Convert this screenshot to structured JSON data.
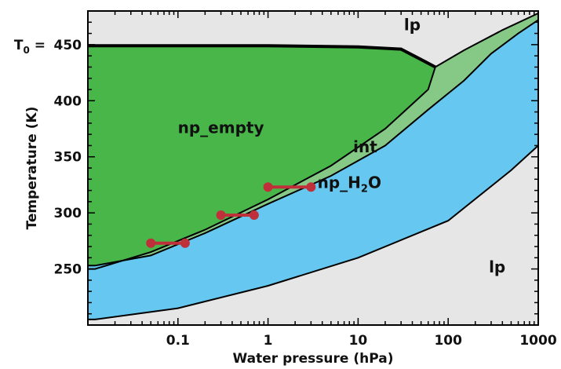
{
  "chart_data": {
    "type": "area",
    "xlabel": "Water pressure (hPa)",
    "ylabel": "Temperature (K)",
    "x_scale": "log",
    "xlim": [
      0.01,
      1000
    ],
    "ylim": [
      200,
      480
    ],
    "x_ticks": [
      {
        "value": 0.1,
        "label": "0.1"
      },
      {
        "value": 1,
        "label": "1"
      },
      {
        "value": 10,
        "label": "10"
      },
      {
        "value": 100,
        "label": "100"
      },
      {
        "value": 1000,
        "label": "1000"
      }
    ],
    "y_ticks": [
      {
        "value": 250,
        "label": "250"
      },
      {
        "value": 300,
        "label": "300"
      },
      {
        "value": 350,
        "label": "350"
      },
      {
        "value": 400,
        "label": "400"
      },
      {
        "value": 450,
        "label": "450"
      }
    ],
    "t0_label": {
      "prefix": "T",
      "sub": "0",
      "suffix": " = "
    },
    "colors": {
      "lp": "#e6e6e6",
      "np_empty": "#48b648",
      "int": "#86c986",
      "np_h2o": "#66c8f0",
      "markers": "#c0303a",
      "boundary": "#000000"
    },
    "regions": [
      {
        "name": "lp",
        "label": "lp",
        "x": 40,
        "y": 463
      },
      {
        "name": "np_empty",
        "label": "np_empty",
        "x": 0.3,
        "y": 371
      },
      {
        "name": "int",
        "label": "int",
        "x": 12,
        "y": 354
      },
      {
        "name": "np_h2o",
        "label_main": "np_H",
        "label_sub": "2",
        "label_tail": "O",
        "x": 8,
        "y": 322
      },
      {
        "name": "lp_lower",
        "label": "lp",
        "x": 350,
        "y": 247
      }
    ],
    "boundaries": {
      "top_plateau": [
        [
          0.012,
          449
        ],
        [
          1,
          449
        ],
        [
          10,
          448
        ],
        [
          30,
          446
        ],
        [
          55,
          435
        ],
        [
          72,
          430
        ]
      ],
      "np_empty_lower": [
        [
          0.012,
          250
        ],
        [
          0.05,
          265
        ],
        [
          0.2,
          285
        ],
        [
          1,
          312
        ],
        [
          5,
          342
        ],
        [
          20,
          375
        ],
        [
          60,
          410
        ],
        [
          72,
          430
        ]
      ],
      "int_lower": [
        [
          0.012,
          253
        ],
        [
          0.05,
          262
        ],
        [
          0.2,
          282
        ],
        [
          1,
          308
        ],
        [
          5,
          333
        ],
        [
          20,
          360
        ],
        [
          60,
          392
        ],
        [
          150,
          418
        ],
        [
          300,
          442
        ],
        [
          600,
          460
        ],
        [
          1000,
          472
        ]
      ],
      "int_upper": [
        [
          72,
          430
        ],
        [
          150,
          445
        ],
        [
          400,
          463
        ],
        [
          1000,
          478
        ]
      ],
      "np_h2o_upper_rest": [
        [
          1000,
          478
        ]
      ],
      "np_h2o_lower": [
        [
          0.012,
          205
        ],
        [
          0.1,
          215
        ],
        [
          1,
          235
        ],
        [
          10,
          260
        ],
        [
          100,
          293
        ],
        [
          500,
          338
        ],
        [
          1000,
          360
        ]
      ]
    },
    "measured_ranges": [
      {
        "y": 273,
        "x_start": 0.05,
        "x_end": 0.12
      },
      {
        "y": 298,
        "x_start": 0.3,
        "x_end": 0.7
      },
      {
        "y": 323,
        "x_start": 1,
        "x_end": 3
      }
    ]
  }
}
